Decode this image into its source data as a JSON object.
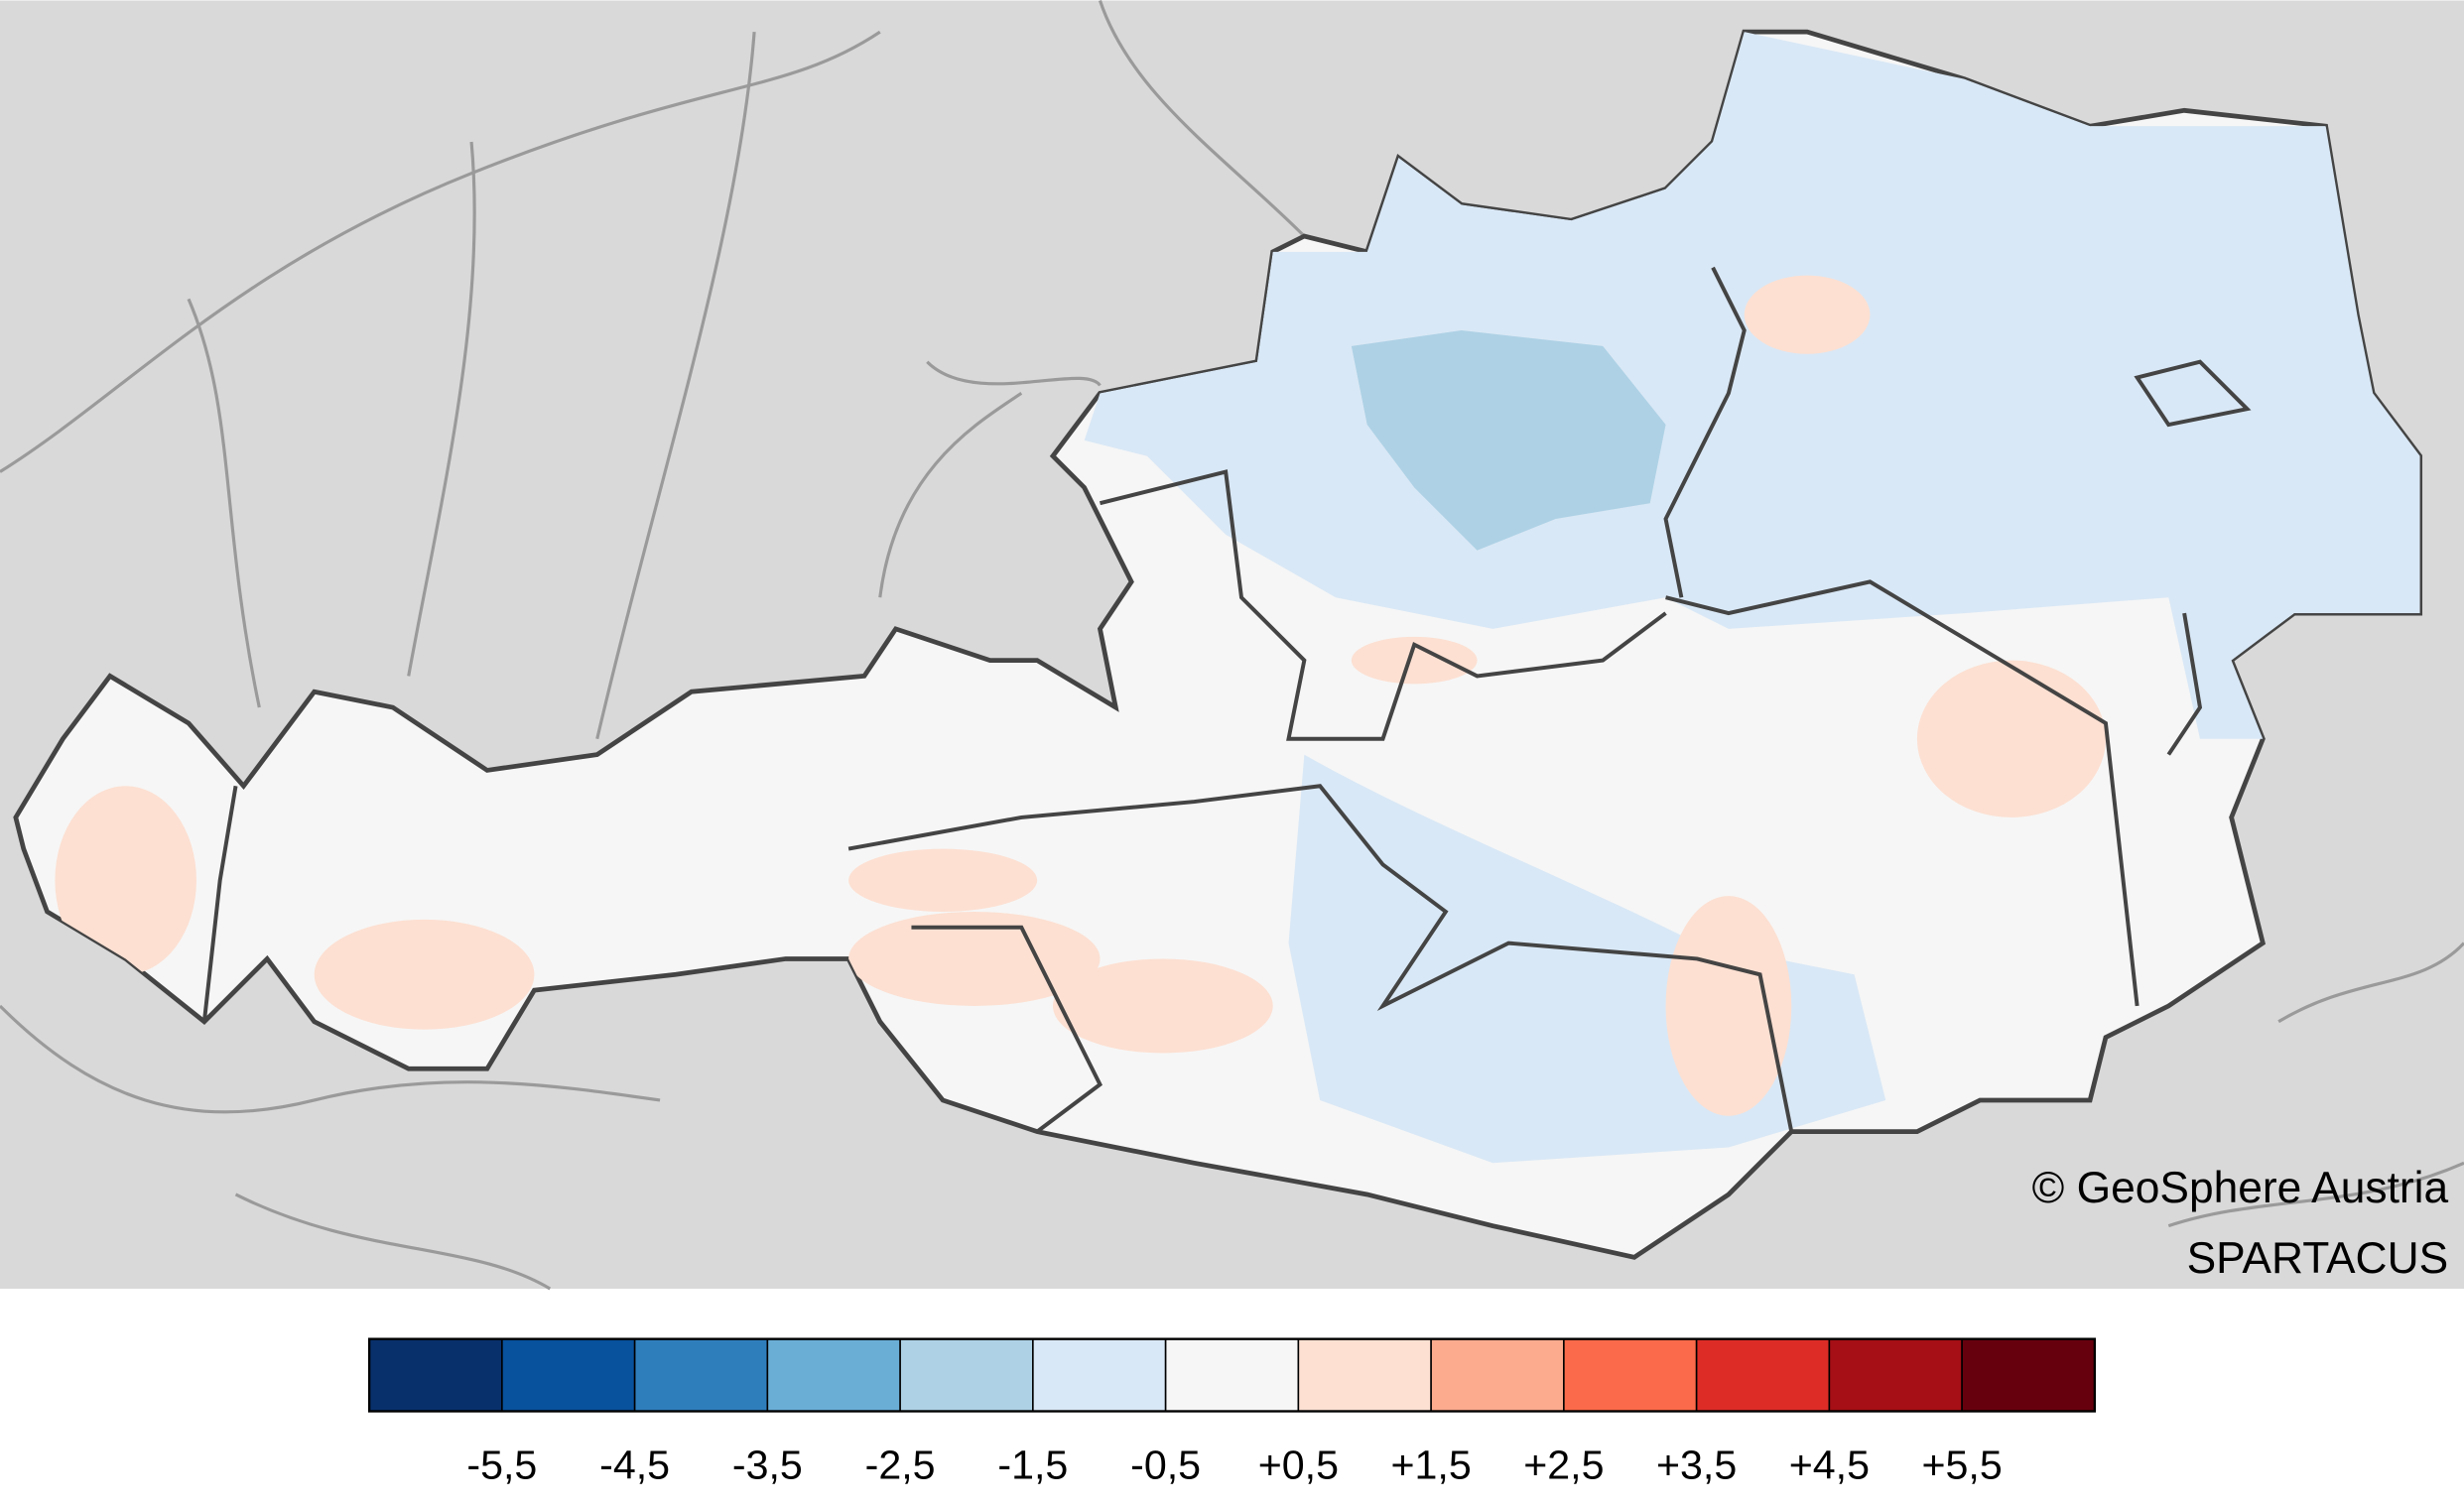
{
  "map": {
    "credit": "© GeoSphere Austria",
    "source": "SPARTACUS"
  },
  "legend": {
    "colors": [
      "#08306b",
      "#08519c",
      "#2f7ebc",
      "#6aaed6",
      "#aed1e5",
      "#d9e8f6",
      "#f6f6f6",
      "#fde0d2",
      "#fcab8e",
      "#fb6a4a",
      "#dd2c26",
      "#a50f15",
      "#67000d"
    ],
    "labels": [
      "-5,5",
      "-4,5",
      "-3,5",
      "-2,5",
      "-1,5",
      "-0,5",
      "+0,5",
      "+1,5",
      "+2,5",
      "+3,5",
      "+4,5",
      "+5,5"
    ]
  }
}
